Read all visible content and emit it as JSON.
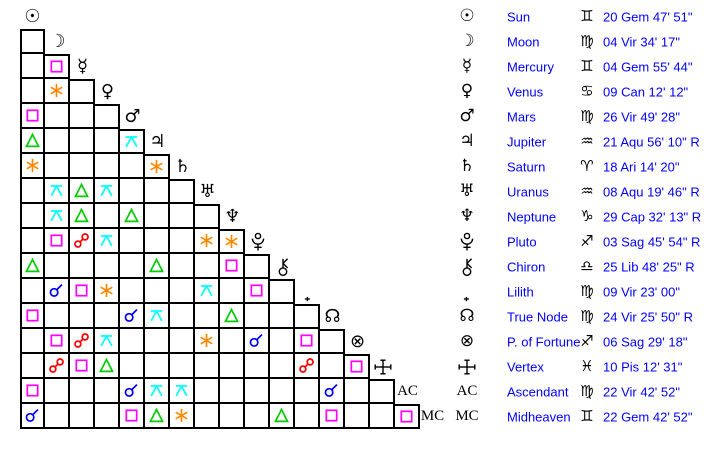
{
  "colors": {
    "background": "#ffffff",
    "grid_line": "#000000",
    "glyph": "#000000",
    "label_text": "#0000ff",
    "position_text": "#0000ff",
    "aspects": {
      "conjunction": "#0000ff",
      "opposition": "#ff0000",
      "square": "#ff00ff",
      "trine": "#00cc00",
      "sextile": "#ff8800",
      "quincunx": "#00ffff"
    }
  },
  "glyph_chars": {
    "sun": "☉",
    "moon": "☽",
    "mercury": "☿",
    "venus": "♀",
    "mars": "♂",
    "jupiter": "♃",
    "saturn": "♄",
    "uranus": "♅",
    "neptune": "♆",
    "true_node": "☊",
    "fortune": "⊗",
    "ascendant": "AC",
    "midheaven": "MC",
    "aries": "♈",
    "gemini": "♊",
    "cancer": "♋",
    "virgo": "♍",
    "libra": "♎",
    "sagittarius": "♐",
    "capricorn": "♑",
    "aquarius": "♒",
    "pisces": "♓"
  },
  "chart_data": {
    "type": "table",
    "points": [
      {
        "id": "sun",
        "name": "Sun",
        "sign": "gemini",
        "position": "20 Gem 47' 51\""
      },
      {
        "id": "moon",
        "name": "Moon",
        "sign": "virgo",
        "position": "04 Vir 34' 17\""
      },
      {
        "id": "mercury",
        "name": "Mercury",
        "sign": "gemini",
        "position": "04 Gem 55' 44\""
      },
      {
        "id": "venus",
        "name": "Venus",
        "sign": "cancer",
        "position": "09 Can 12' 12\""
      },
      {
        "id": "mars",
        "name": "Mars",
        "sign": "virgo",
        "position": "26 Vir 49' 28\""
      },
      {
        "id": "jupiter",
        "name": "Jupiter",
        "sign": "aquarius",
        "position": "21 Aqu 56' 10\" R"
      },
      {
        "id": "saturn",
        "name": "Saturn",
        "sign": "aries",
        "position": "18 Ari 14' 20\""
      },
      {
        "id": "uranus",
        "name": "Uranus",
        "sign": "aquarius",
        "position": "08 Aqu 19' 46\" R"
      },
      {
        "id": "neptune",
        "name": "Neptune",
        "sign": "capricorn",
        "position": "29 Cap 32' 13\" R"
      },
      {
        "id": "pluto",
        "name": "Pluto",
        "sign": "sagittarius",
        "position": "03 Sag 45' 54\" R"
      },
      {
        "id": "chiron",
        "name": "Chiron",
        "sign": "libra",
        "position": "25 Lib 48' 25\" R"
      },
      {
        "id": "lilith",
        "name": "Lilith",
        "sign": "virgo",
        "position": "09 Vir 23' 00\""
      },
      {
        "id": "true_node",
        "name": "True Node",
        "sign": "virgo",
        "position": "24 Vir 25' 50\" R"
      },
      {
        "id": "fortune",
        "name": "P. of Fortune",
        "sign": "sagittarius",
        "position": "06 Sag 29' 18\""
      },
      {
        "id": "vertex",
        "name": "Vertex",
        "sign": "pisces",
        "position": "10 Pis 12' 31\""
      },
      {
        "id": "ascendant",
        "name": "Ascendant",
        "sign": "virgo",
        "position": "22 Vir 42' 52\""
      },
      {
        "id": "midheaven",
        "name": "Midheaven",
        "sign": "gemini",
        "position": "22 Gem 42' 52\""
      }
    ],
    "aspects": [
      {
        "row": "mercury",
        "col": "moon",
        "type": "square"
      },
      {
        "row": "venus",
        "col": "moon",
        "type": "sextile"
      },
      {
        "row": "mars",
        "col": "sun",
        "type": "square"
      },
      {
        "row": "jupiter",
        "col": "sun",
        "type": "trine"
      },
      {
        "row": "jupiter",
        "col": "mars",
        "type": "quincunx"
      },
      {
        "row": "saturn",
        "col": "sun",
        "type": "sextile"
      },
      {
        "row": "saturn",
        "col": "jupiter",
        "type": "sextile"
      },
      {
        "row": "uranus",
        "col": "moon",
        "type": "quincunx"
      },
      {
        "row": "uranus",
        "col": "mercury",
        "type": "trine"
      },
      {
        "row": "uranus",
        "col": "venus",
        "type": "quincunx"
      },
      {
        "row": "neptune",
        "col": "moon",
        "type": "quincunx"
      },
      {
        "row": "neptune",
        "col": "mercury",
        "type": "trine"
      },
      {
        "row": "neptune",
        "col": "mars",
        "type": "trine"
      },
      {
        "row": "pluto",
        "col": "moon",
        "type": "square"
      },
      {
        "row": "pluto",
        "col": "mercury",
        "type": "opposition"
      },
      {
        "row": "pluto",
        "col": "venus",
        "type": "quincunx"
      },
      {
        "row": "pluto",
        "col": "uranus",
        "type": "sextile"
      },
      {
        "row": "pluto",
        "col": "neptune",
        "type": "sextile"
      },
      {
        "row": "chiron",
        "col": "sun",
        "type": "trine"
      },
      {
        "row": "chiron",
        "col": "jupiter",
        "type": "trine"
      },
      {
        "row": "chiron",
        "col": "neptune",
        "type": "square"
      },
      {
        "row": "lilith",
        "col": "moon",
        "type": "conjunction"
      },
      {
        "row": "lilith",
        "col": "mercury",
        "type": "square"
      },
      {
        "row": "lilith",
        "col": "venus",
        "type": "sextile"
      },
      {
        "row": "lilith",
        "col": "uranus",
        "type": "quincunx"
      },
      {
        "row": "lilith",
        "col": "pluto",
        "type": "square"
      },
      {
        "row": "true_node",
        "col": "sun",
        "type": "square"
      },
      {
        "row": "true_node",
        "col": "mars",
        "type": "conjunction"
      },
      {
        "row": "true_node",
        "col": "jupiter",
        "type": "quincunx"
      },
      {
        "row": "true_node",
        "col": "neptune",
        "type": "trine"
      },
      {
        "row": "fortune",
        "col": "moon",
        "type": "square"
      },
      {
        "row": "fortune",
        "col": "mercury",
        "type": "opposition"
      },
      {
        "row": "fortune",
        "col": "venus",
        "type": "quincunx"
      },
      {
        "row": "fortune",
        "col": "uranus",
        "type": "sextile"
      },
      {
        "row": "fortune",
        "col": "pluto",
        "type": "conjunction"
      },
      {
        "row": "fortune",
        "col": "lilith",
        "type": "square"
      },
      {
        "row": "vertex",
        "col": "moon",
        "type": "opposition"
      },
      {
        "row": "vertex",
        "col": "mercury",
        "type": "square"
      },
      {
        "row": "vertex",
        "col": "venus",
        "type": "trine"
      },
      {
        "row": "vertex",
        "col": "lilith",
        "type": "opposition"
      },
      {
        "row": "vertex",
        "col": "fortune",
        "type": "square"
      },
      {
        "row": "ascendant",
        "col": "sun",
        "type": "square"
      },
      {
        "row": "ascendant",
        "col": "mars",
        "type": "conjunction"
      },
      {
        "row": "ascendant",
        "col": "jupiter",
        "type": "quincunx"
      },
      {
        "row": "ascendant",
        "col": "saturn",
        "type": "quincunx"
      },
      {
        "row": "ascendant",
        "col": "true_node",
        "type": "conjunction"
      },
      {
        "row": "midheaven",
        "col": "sun",
        "type": "conjunction"
      },
      {
        "row": "midheaven",
        "col": "mars",
        "type": "square"
      },
      {
        "row": "midheaven",
        "col": "jupiter",
        "type": "trine"
      },
      {
        "row": "midheaven",
        "col": "saturn",
        "type": "sextile"
      },
      {
        "row": "midheaven",
        "col": "chiron",
        "type": "trine"
      },
      {
        "row": "midheaven",
        "col": "true_node",
        "type": "square"
      },
      {
        "row": "midheaven",
        "col": "ascendant",
        "type": "square"
      }
    ]
  }
}
